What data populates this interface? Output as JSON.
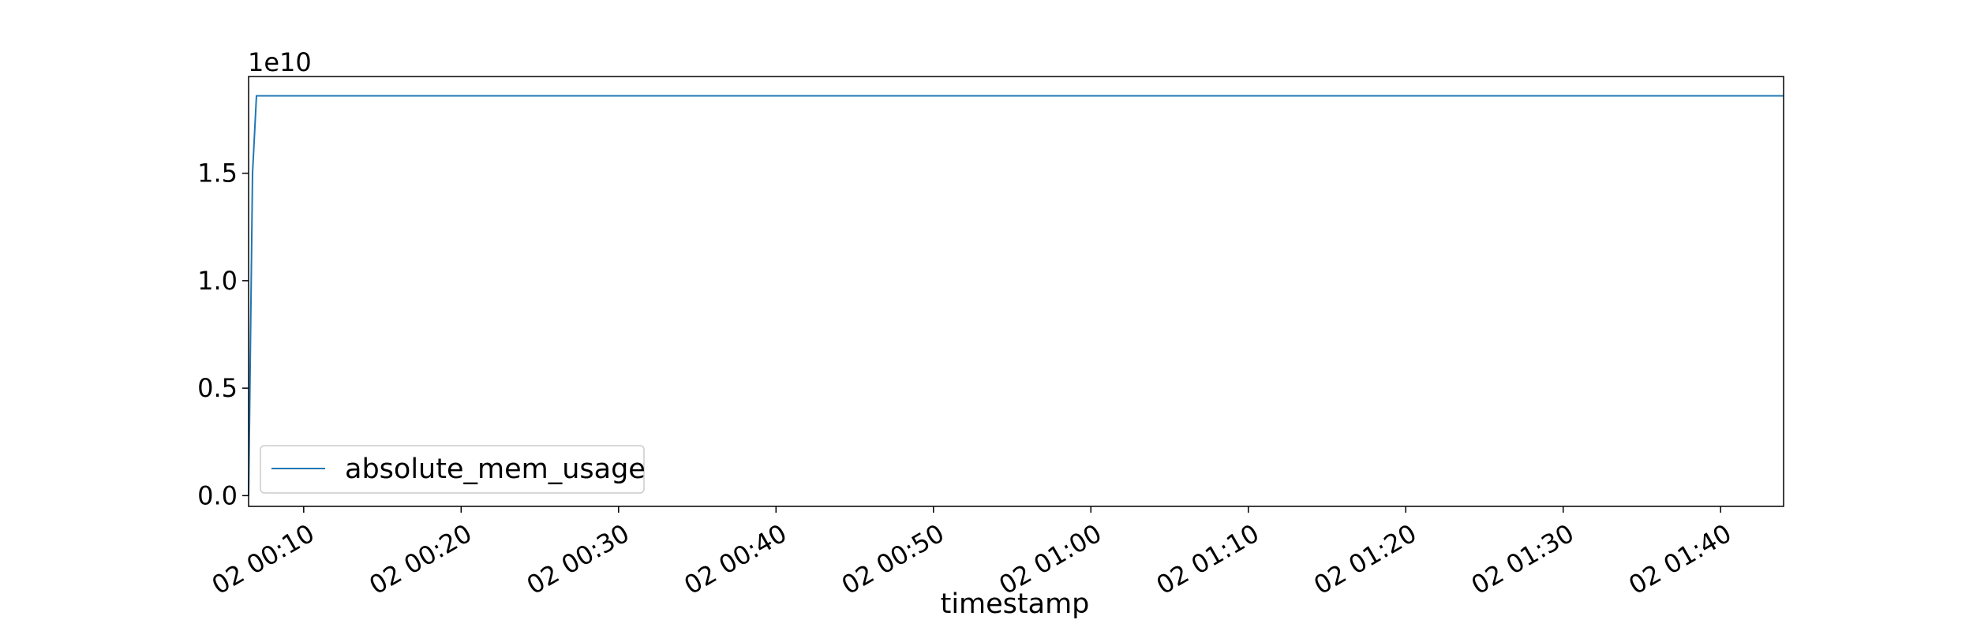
{
  "chart_data": {
    "type": "line",
    "title": "",
    "xlabel": "timestamp",
    "ylabel": "",
    "y_offset_label": "1e10",
    "y_scale": 10000000000,
    "x_start": "02 00:06:30",
    "x_end": "02 01:44:00",
    "xlim": [
      "02 00:06:30",
      "02 01:44:00"
    ],
    "ylim": [
      -0.05,
      1.95
    ],
    "x_ticks": [
      {
        "label": "02 00:10",
        "time": "02 00:10:00"
      },
      {
        "label": "02 00:20",
        "time": "02 00:20:00"
      },
      {
        "label": "02 00:30",
        "time": "02 00:30:00"
      },
      {
        "label": "02 00:40",
        "time": "02 00:40:00"
      },
      {
        "label": "02 00:50",
        "time": "02 00:50:00"
      },
      {
        "label": "02 01:00",
        "time": "02 01:00:00"
      },
      {
        "label": "02 01:10",
        "time": "02 01:10:00"
      },
      {
        "label": "02 01:20",
        "time": "02 01:20:00"
      },
      {
        "label": "02 01:30",
        "time": "02 01:30:00"
      },
      {
        "label": "02 01:40",
        "time": "02 01:40:00"
      }
    ],
    "y_ticks": [
      {
        "label": "0.0",
        "value": 0.0
      },
      {
        "label": "0.5",
        "value": 0.5
      },
      {
        "label": "1.0",
        "value": 1.0
      },
      {
        "label": "1.5",
        "value": 1.5
      }
    ],
    "grid": false,
    "legend_position": "lower-left",
    "series": [
      {
        "name": "absolute_mem_usage",
        "color": "#1f77b4",
        "points": [
          {
            "x": "02 00:06:30",
            "y": 0.0
          },
          {
            "x": "02 00:06:45",
            "y": 1.5
          },
          {
            "x": "02 00:07:00",
            "y": 1.86
          },
          {
            "x": "02 01:44:00",
            "y": 1.86
          }
        ]
      }
    ]
  }
}
